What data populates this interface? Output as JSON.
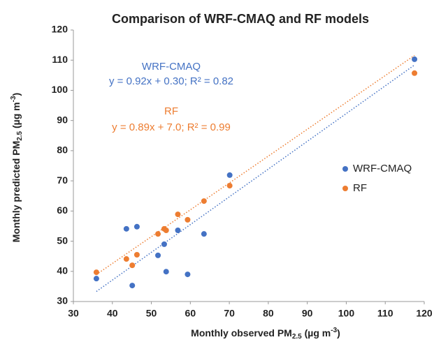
{
  "chart_data": {
    "type": "scatter",
    "title": "Comparison of WRF-CMAQ and RF models",
    "xlabel": [
      "Monthly observed PM",
      "2.5",
      " (µg m",
      "-3",
      ")"
    ],
    "ylabel": [
      "Monthly predicted PM",
      "2.5",
      " (µg m",
      "-3",
      ")"
    ],
    "xlim": [
      30,
      120
    ],
    "xticks": [
      30,
      40,
      50,
      60,
      70,
      80,
      90,
      100,
      110,
      120
    ],
    "ylim": [
      30,
      120
    ],
    "yticks": [
      30,
      40,
      50,
      60,
      70,
      80,
      90,
      100,
      110,
      120
    ],
    "grid": false,
    "legend": "right",
    "series": [
      {
        "name": "WRF-CMAQ",
        "color": "#4472c4",
        "x": [
          35.9,
          43.6,
          45.1,
          46.3,
          51.7,
          53.3,
          53.8,
          56.8,
          59.3,
          63.5,
          70.1,
          117.5
        ],
        "values": [
          37.6,
          54.1,
          35.3,
          54.8,
          45.3,
          49.0,
          39.9,
          53.6,
          39.0,
          52.4,
          71.9,
          110.3
        ],
        "trendline": {
          "slope": 0.92,
          "intercept": 0.3,
          "label": "y = 0.92x + 0.30; R² = 0.82"
        }
      },
      {
        "name": "RF",
        "color": "#ed7d31",
        "x": [
          35.9,
          43.6,
          45.1,
          46.3,
          51.7,
          53.3,
          53.8,
          56.8,
          59.3,
          63.5,
          70.1,
          117.5
        ],
        "values": [
          39.7,
          44.1,
          42.0,
          45.5,
          52.4,
          54.1,
          53.6,
          58.9,
          57.1,
          63.3,
          68.4,
          105.7
        ],
        "trendline": {
          "slope": 0.89,
          "intercept": 7.0,
          "label": "y = 0.89x + 7.0; R² = 0.99"
        }
      }
    ]
  }
}
